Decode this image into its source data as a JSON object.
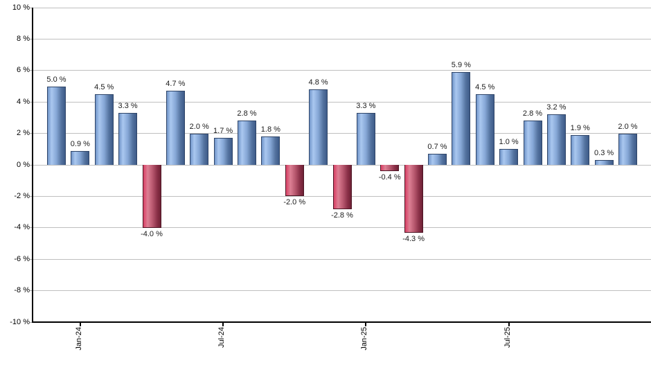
{
  "chart_data": {
    "type": "bar",
    "title": "",
    "values": [
      5.0,
      0.9,
      4.5,
      3.3,
      -4.0,
      4.7,
      2.0,
      1.7,
      2.8,
      1.8,
      -2.0,
      4.8,
      -2.8,
      3.3,
      -0.4,
      -4.3,
      0.7,
      5.9,
      4.5,
      1.0,
      2.8,
      3.2,
      1.9,
      0.3,
      2.0
    ],
    "bar_labels": [
      "5.0 %",
      "0.9 %",
      "4.5 %",
      "3.3 %",
      "-4.0 %",
      "4.7 %",
      "2.0 %",
      "1.7 %",
      "2.8 %",
      "1.8 %",
      "-2.0 %",
      "4.8 %",
      "-2.8 %",
      "3.3 %",
      "-0.4 %",
      "-4.3 %",
      "0.7 %",
      "5.9 %",
      "4.5 %",
      "1.0 %",
      "2.8 %",
      "3.2 %",
      "1.9 %",
      "0.3 %",
      "2.0 %"
    ],
    "y_axis": {
      "min": -10,
      "max": 10,
      "step": 2,
      "tick_labels": [
        "10 %",
        "8 %",
        "6 %",
        "4 %",
        "2 %",
        "0 %",
        "-2 %",
        "-4 %",
        "-6 %",
        "-8 %",
        "-10 %"
      ]
    },
    "x_axis": {
      "ticks": [
        {
          "label": "Jan-24",
          "bar_index": 1
        },
        {
          "label": "Jul-24",
          "bar_index": 7
        },
        {
          "label": "Jan-25",
          "bar_index": 13
        },
        {
          "label": "Jul-25",
          "bar_index": 19
        }
      ]
    },
    "grid": true,
    "legend": false,
    "colors": {
      "positive_bar_light": "#aac8f0",
      "positive_bar_dark": "#3e5b89",
      "negative_bar_light": "#dd7f94",
      "negative_bar_dark": "#6e2135",
      "gridline": "#bfbfbf",
      "axis": "#000000",
      "label_text": "#1a1a1a"
    }
  }
}
